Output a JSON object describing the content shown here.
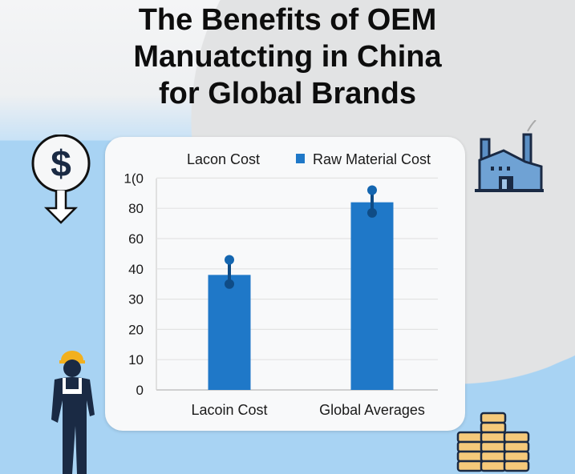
{
  "title_lines": [
    "The Benefits of OEM",
    "Manuatcting in China",
    "for Global Brands"
  ],
  "chart_data": {
    "type": "bar",
    "title": "",
    "xlabel": "",
    "ylabel": "",
    "legend": {
      "placement": "top",
      "entries": [
        {
          "label": "Lacon Cost",
          "swatch": false
        },
        {
          "label": "Raw Material Cost",
          "swatch": true,
          "color": "#1f78c8"
        }
      ]
    },
    "y_tick_labels": [
      "0",
      "10",
      "20",
      "30",
      "40",
      "60",
      "80",
      "1(0"
    ],
    "y_tick_values": [
      0,
      10,
      20,
      30,
      40,
      60,
      80,
      100
    ],
    "ylim": [
      0,
      100
    ],
    "grid": true,
    "categories": [
      "Lacoin Cost",
      "Global Averages"
    ],
    "series": [
      {
        "values": [
          38,
          84
        ],
        "error_low": [
          35,
          77
        ],
        "error_high": [
          46,
          92
        ],
        "color": "#1f78c8"
      }
    ]
  },
  "icons": [
    "dollar-down-icon",
    "factory-icon",
    "worker-icon",
    "coin-stack-icon"
  ],
  "colors": {
    "bar": "#1f78c8",
    "background_blue": "#a8d3f3",
    "background_grey": "#e2e3e4",
    "dark_navy": "#1a2a44",
    "helmet": "#f2b01e"
  }
}
